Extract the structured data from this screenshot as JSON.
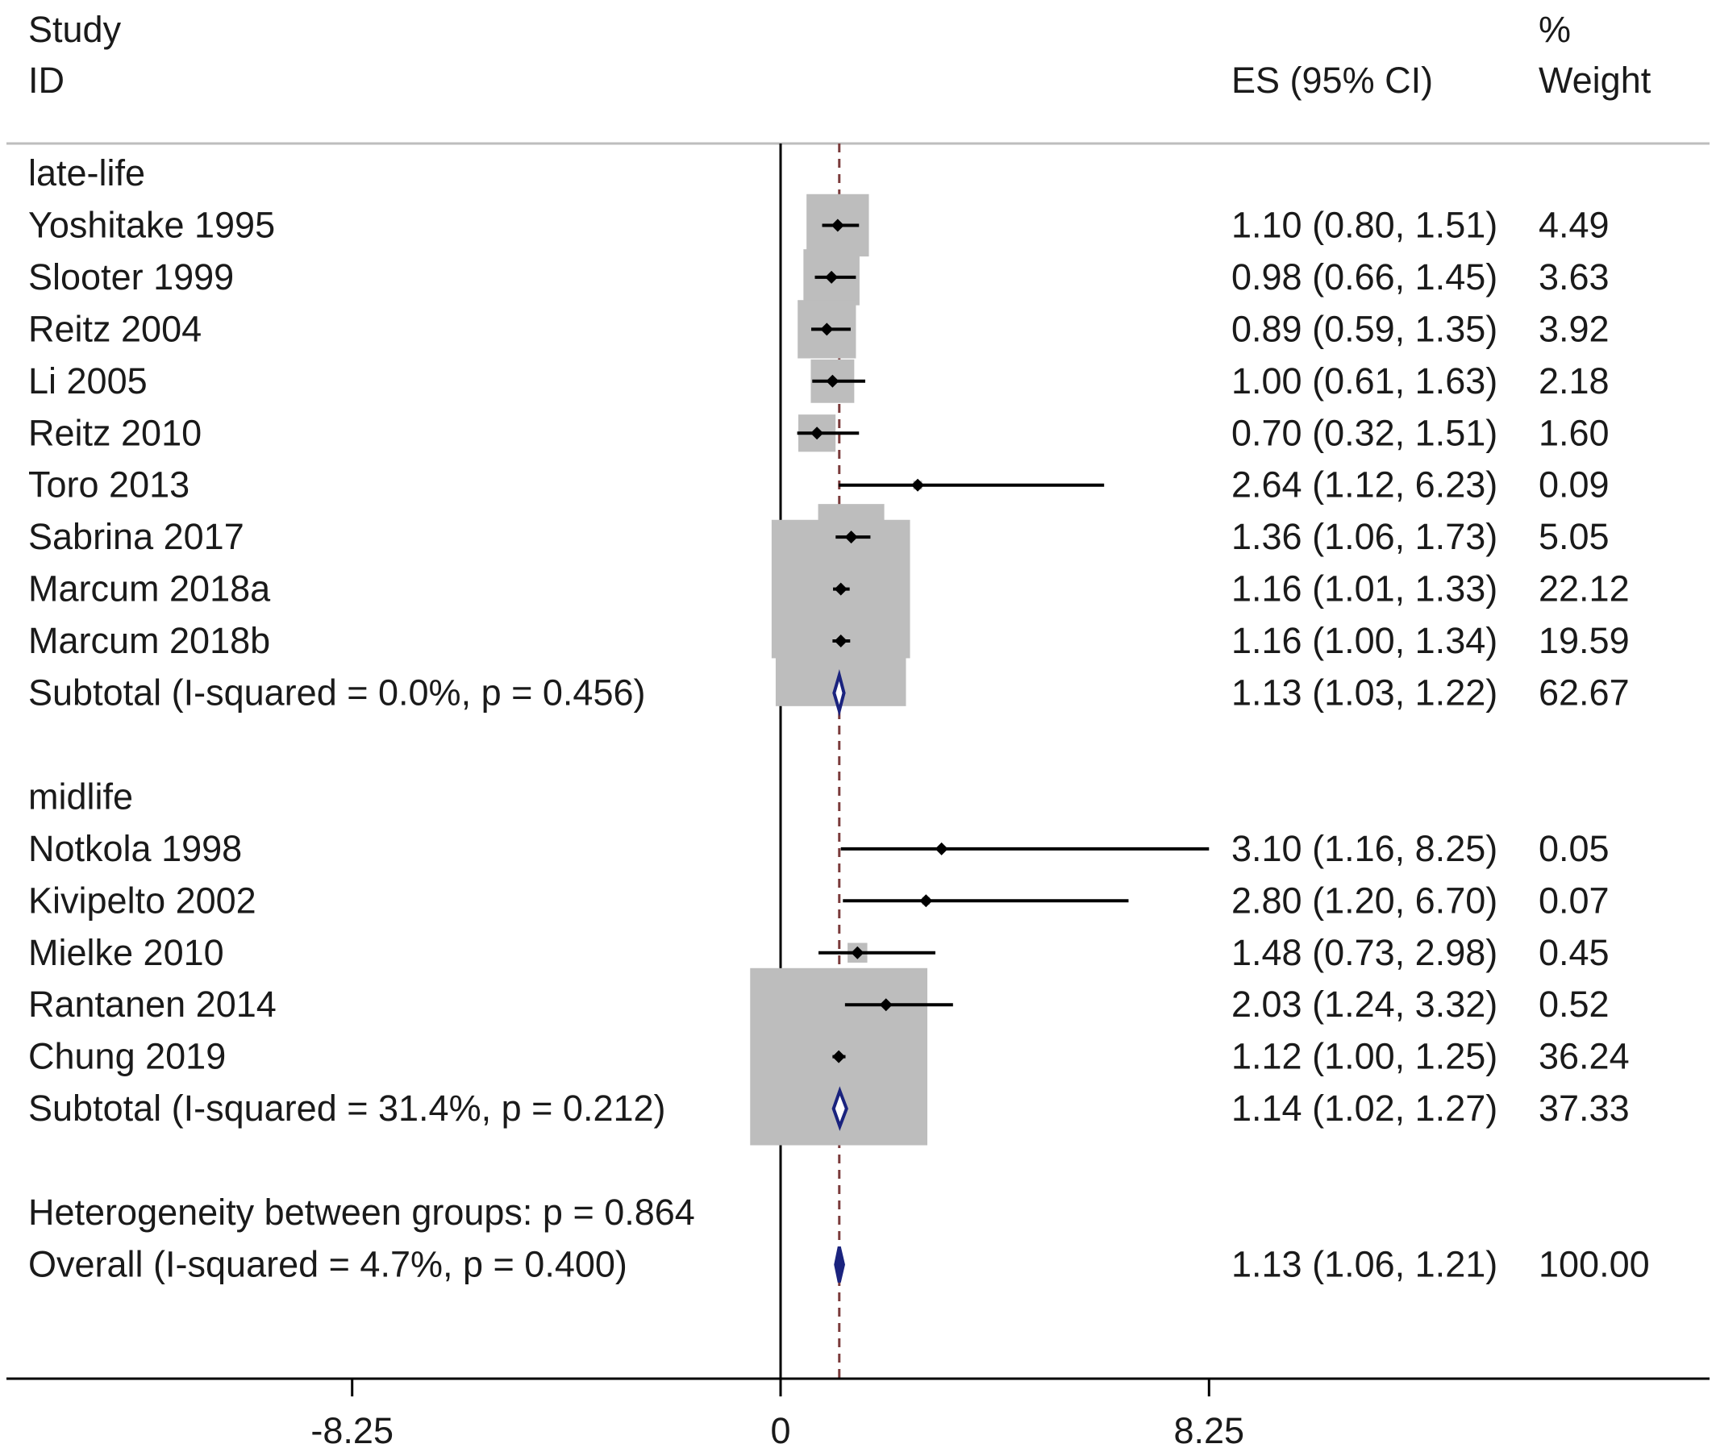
{
  "chart_data": {
    "type": "forest",
    "header": {
      "study_line1": "Study",
      "study_line2": "ID",
      "es": "ES (95% CI)",
      "weight_line1": "%",
      "weight_line2": "Weight"
    },
    "x_axis": {
      "ticks": [
        -8.25,
        0,
        8.25
      ],
      "tick_labels": [
        "-8.25",
        "0",
        "8.25"
      ],
      "range": [
        -15,
        18
      ],
      "reference_line": 0,
      "overall_line": 1.13
    },
    "groups": [
      {
        "label": "late-life",
        "studies": [
          {
            "id": "Yoshitake 1995",
            "es": 1.1,
            "lo": 0.8,
            "hi": 1.51,
            "weight": 4.49,
            "es_text": "1.10 (0.80, 1.51)",
            "weight_text": "4.49"
          },
          {
            "id": "Slooter 1999",
            "es": 0.98,
            "lo": 0.66,
            "hi": 1.45,
            "weight": 3.63,
            "es_text": "0.98 (0.66, 1.45)",
            "weight_text": "3.63"
          },
          {
            "id": "Reitz 2004",
            "es": 0.89,
            "lo": 0.59,
            "hi": 1.35,
            "weight": 3.92,
            "es_text": "0.89 (0.59, 1.35)",
            "weight_text": "3.92"
          },
          {
            "id": "Li 2005",
            "es": 1.0,
            "lo": 0.61,
            "hi": 1.63,
            "weight": 2.18,
            "es_text": "1.00 (0.61, 1.63)",
            "weight_text": "2.18"
          },
          {
            "id": "Reitz 2010",
            "es": 0.7,
            "lo": 0.32,
            "hi": 1.51,
            "weight": 1.6,
            "es_text": "0.70 (0.32, 1.51)",
            "weight_text": "1.60"
          },
          {
            "id": "Toro 2013",
            "es": 2.64,
            "lo": 1.12,
            "hi": 6.23,
            "weight": 0.09,
            "es_text": "2.64 (1.12, 6.23)",
            "weight_text": "0.09"
          },
          {
            "id": "Sabrina 2017",
            "es": 1.36,
            "lo": 1.06,
            "hi": 1.73,
            "weight": 5.05,
            "es_text": "1.36 (1.06, 1.73)",
            "weight_text": "5.05"
          },
          {
            "id": "Marcum 2018a",
            "es": 1.16,
            "lo": 1.01,
            "hi": 1.33,
            "weight": 22.12,
            "es_text": "1.16 (1.01, 1.33)",
            "weight_text": "22.12"
          },
          {
            "id": "Marcum 2018b",
            "es": 1.16,
            "lo": 1.0,
            "hi": 1.34,
            "weight": 19.59,
            "es_text": "1.16 (1.00, 1.34)",
            "weight_text": "19.59"
          }
        ],
        "subtotal": {
          "label": "Subtotal  (I-squared = 0.0%, p = 0.456)",
          "es": 1.13,
          "lo": 1.03,
          "hi": 1.22,
          "es_text": "1.13 (1.03, 1.22)",
          "weight_text": "62.67"
        }
      },
      {
        "label": "midlife",
        "studies": [
          {
            "id": "Notkola 1998",
            "es": 3.1,
            "lo": 1.16,
            "hi": 8.25,
            "weight": 0.05,
            "es_text": "3.10 (1.16, 8.25)",
            "weight_text": "0.05"
          },
          {
            "id": "Kivipelto 2002",
            "es": 2.8,
            "lo": 1.2,
            "hi": 6.7,
            "weight": 0.07,
            "es_text": "2.80 (1.20, 6.70)",
            "weight_text": "0.07"
          },
          {
            "id": "Mielke 2010",
            "es": 1.48,
            "lo": 0.73,
            "hi": 2.98,
            "weight": 0.45,
            "es_text": "1.48 (0.73, 2.98)",
            "weight_text": "0.45"
          },
          {
            "id": "Rantanen 2014",
            "es": 2.03,
            "lo": 1.24,
            "hi": 3.32,
            "weight": 0.52,
            "es_text": "2.03 (1.24, 3.32)",
            "weight_text": "0.52"
          },
          {
            "id": "Chung 2019",
            "es": 1.12,
            "lo": 1.0,
            "hi": 1.25,
            "weight": 36.24,
            "es_text": "1.12 (1.00, 1.25)",
            "weight_text": "36.24"
          }
        ],
        "subtotal": {
          "label": "Subtotal  (I-squared = 31.4%, p = 0.212)",
          "es": 1.14,
          "lo": 1.02,
          "hi": 1.27,
          "es_text": "1.14 (1.02, 1.27)",
          "weight_text": "37.33"
        }
      }
    ],
    "heterogeneity": "Heterogeneity between groups: p = 0.864",
    "overall": {
      "label": "Overall  (I-squared = 4.7%, p = 0.400)",
      "es": 1.13,
      "lo": 1.06,
      "hi": 1.21,
      "es_text": "1.13 (1.06, 1.21)",
      "weight_text": "100.00"
    },
    "colors": {
      "box": "#bdbdbd",
      "point": "#000000",
      "diamond": "#1a237e",
      "overall_line": "#7b3b3b",
      "axis": "#000000",
      "divider": "#bdbdbd"
    }
  }
}
